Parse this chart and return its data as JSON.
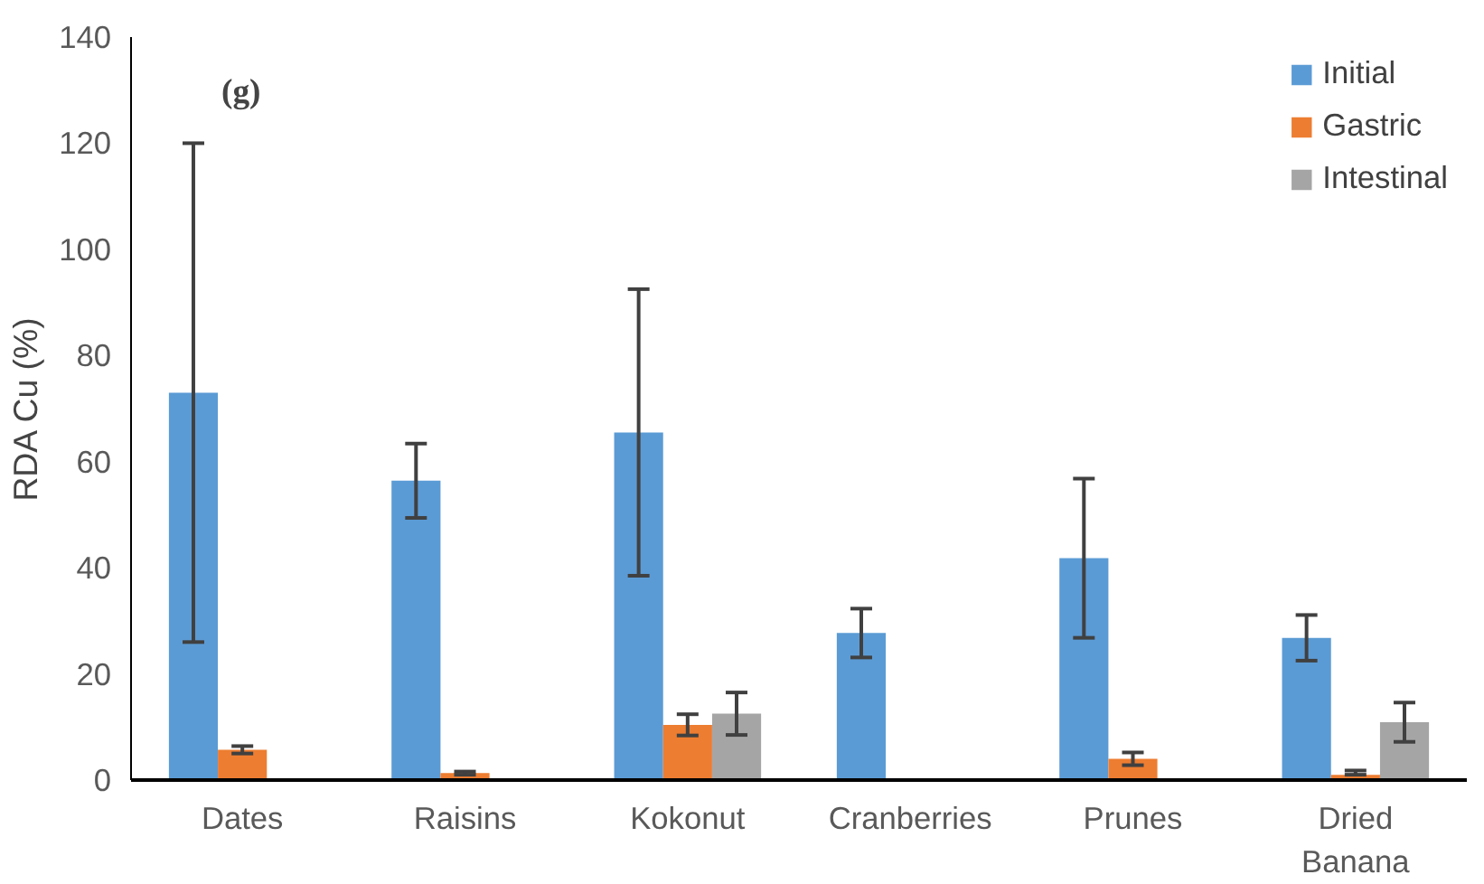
{
  "chart_data": {
    "type": "bar",
    "ylabel": "RDA Cu (%)",
    "annotations": [
      "(g)"
    ],
    "categories": [
      "Dates",
      "Raisins",
      "Kokonut",
      "Cranberries",
      "Prunes",
      "Dried Banana"
    ],
    "ylim": [
      0,
      140
    ],
    "yticks": [
      0,
      20,
      40,
      60,
      80,
      100,
      120,
      140
    ],
    "grid": false,
    "legend": "top right",
    "series": [
      {
        "name": "Initial",
        "color": "#5b9bd5",
        "values": [
          73,
          56.4,
          65.5,
          27.7,
          41.8,
          26.8
        ],
        "errors": [
          [
            26,
            120
          ],
          7,
          27,
          4.6,
          15,
          4.3
        ]
      },
      {
        "name": "Gastric",
        "color": "#ed7d31",
        "values": [
          5.7,
          1.3,
          10.4,
          null,
          4.0,
          1.0
        ],
        "errors": [
          0.7,
          0.3,
          2,
          null,
          1.2,
          [
            1.0,
            1.8
          ]
        ]
      },
      {
        "name": "Intestinal",
        "color": "#a5a5a5",
        "values": [
          null,
          null,
          12.5,
          null,
          null,
          10.9
        ],
        "errors": [
          null,
          null,
          4,
          null,
          null,
          3.7
        ]
      }
    ]
  }
}
